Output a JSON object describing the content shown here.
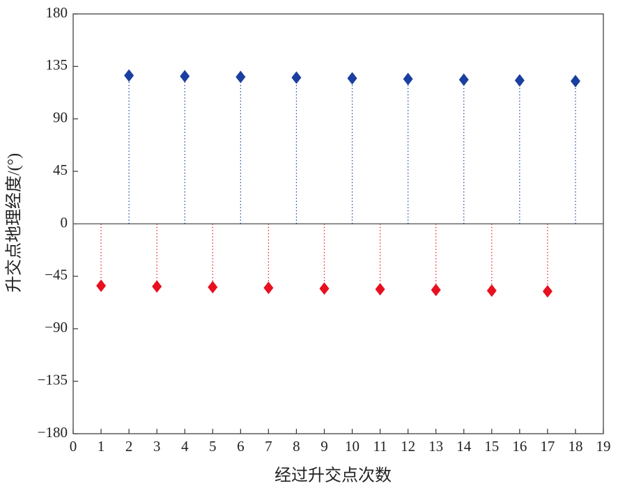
{
  "chart_data": {
    "type": "stem",
    "xlabel": "经过升交点次数",
    "ylabel": "升交点地理经度/(°)",
    "xlim": [
      0,
      19
    ],
    "xticks": [
      0,
      1,
      2,
      3,
      4,
      5,
      6,
      7,
      8,
      9,
      10,
      11,
      12,
      13,
      14,
      15,
      16,
      17,
      18,
      19
    ],
    "ylim": [
      -180,
      180
    ],
    "yticks": [
      {
        "value": -180,
        "label": "−180"
      },
      {
        "value": -135,
        "label": "−135"
      },
      {
        "value": -90,
        "label": "−90"
      },
      {
        "value": -45,
        "label": "−45"
      },
      0,
      45,
      90,
      135,
      180
    ],
    "series": [
      {
        "color": "#1a3fa0",
        "x": [
          2,
          4,
          6,
          8,
          10,
          12,
          14,
          16,
          18
        ],
        "values": [
          127.2,
          126.6,
          126.0,
          125.4,
          124.8,
          124.2,
          123.6,
          123.0,
          122.4
        ]
      },
      {
        "color": "#e8101e",
        "x": [
          1,
          3,
          5,
          7,
          9,
          11,
          13,
          15,
          17
        ],
        "values": [
          -53.1,
          -53.7,
          -54.3,
          -54.9,
          -55.5,
          -56.1,
          -56.7,
          -57.3,
          -57.9
        ]
      }
    ]
  }
}
